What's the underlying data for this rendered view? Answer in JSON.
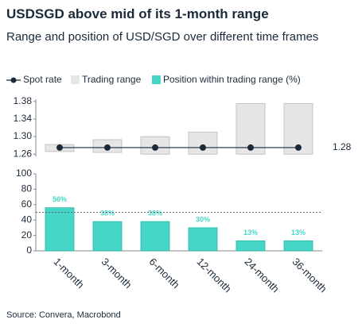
{
  "title": "USDSGD above mid of its 1-month range",
  "subtitle": "Range and position of USD/SGD over different time frames",
  "source": "Source: Convera, Macrobond",
  "chart_data": [
    {
      "type": "range",
      "series": [
        {
          "name": "Trading range",
          "color": "#e6e6e6",
          "low": [
            1.266,
            1.264,
            1.26,
            1.26,
            1.26,
            1.26
          ],
          "high": [
            1.282,
            1.293,
            1.3,
            1.31,
            1.375,
            1.375
          ]
        }
      ],
      "spot": {
        "name": "Spot rate",
        "color": "#1b2a3a",
        "value": 1.275,
        "value_label": "1.28"
      },
      "ylim": [
        1.255,
        1.385
      ],
      "yticks": [
        {
          "value": 1.26,
          "label": "1.26"
        },
        {
          "value": 1.3,
          "label": "1.30"
        },
        {
          "value": 1.34,
          "label": "1.34"
        },
        {
          "value": 1.38,
          "label": "1.38"
        }
      ]
    },
    {
      "type": "bar",
      "categories": [
        "1-month",
        "3-month",
        "6-month",
        "12-month",
        "24-month",
        "36-month"
      ],
      "series": [
        {
          "name": "Position within trading range (%)",
          "color": "#45d6c8",
          "values": [
            56,
            38,
            38,
            30,
            13,
            13
          ],
          "value_labels": [
            "56%",
            "38%",
            "38%",
            "30%",
            "13%",
            "13%"
          ]
        }
      ],
      "reference_line": 50,
      "ylim": [
        0,
        100
      ],
      "yticks": [
        0,
        20,
        40,
        60,
        80,
        100
      ]
    }
  ]
}
